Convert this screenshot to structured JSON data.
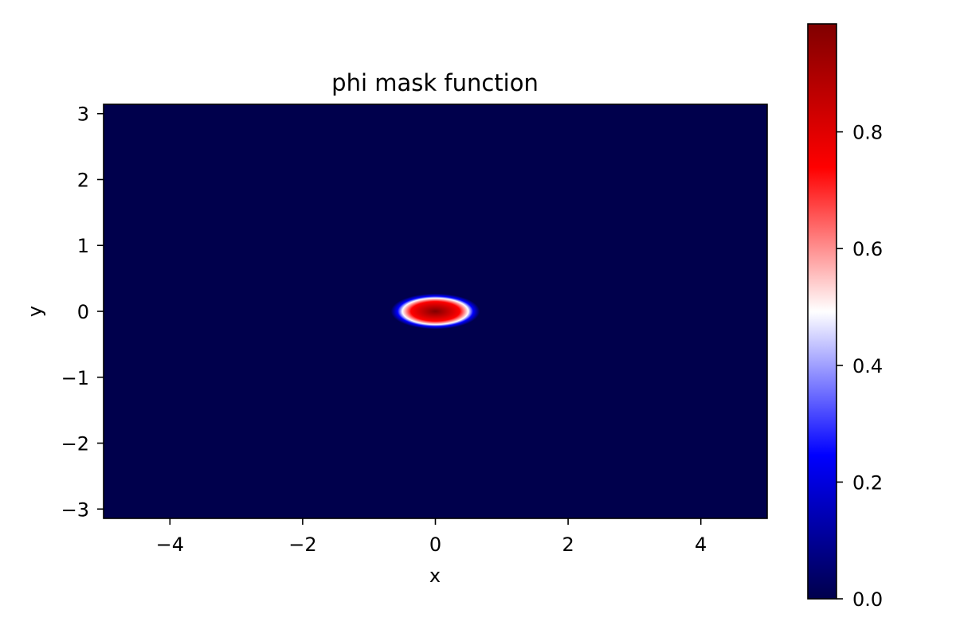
{
  "chart_data": {
    "type": "heatmap",
    "title": "phi mask function",
    "xlabel": "x",
    "ylabel": "y",
    "xlim": [
      -5,
      5
    ],
    "ylim": [
      -3.1416,
      3.1416
    ],
    "xticks": [
      -4,
      -2,
      0,
      2,
      4
    ],
    "xtick_labels": [
      "−4",
      "−2",
      "0",
      "2",
      "4"
    ],
    "yticks": [
      -3,
      -2,
      -1,
      0,
      1,
      2,
      3
    ],
    "ytick_labels": [
      "−3",
      "−2",
      "−1",
      "0",
      "1",
      "2",
      "3"
    ],
    "colormap": "seismic",
    "colormap_stops": [
      "#00004c",
      "#0000ff",
      "#ffffff",
      "#ff0000",
      "#800000"
    ],
    "value_range": [
      0,
      0.985
    ],
    "colorbar_ticks": [
      0.0,
      0.2,
      0.4,
      0.6,
      0.8
    ],
    "colorbar_tick_labels": [
      "0.0",
      "0.2",
      "0.4",
      "0.6",
      "0.8"
    ],
    "feature": {
      "shape": "ellipse",
      "center": [
        0,
        0
      ],
      "semi_axis_x": 0.67,
      "semi_axis_y": 0.27,
      "peak_value": 0.985,
      "background_value": 0.0
    },
    "grid": false
  }
}
